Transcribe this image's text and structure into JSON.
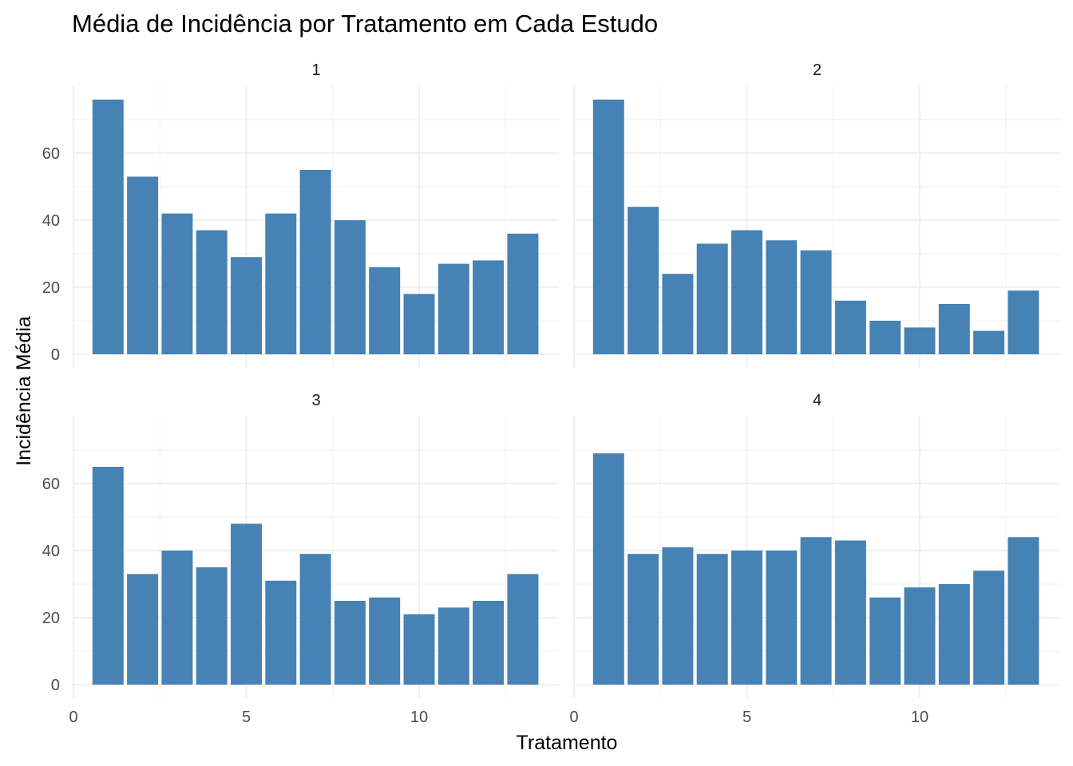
{
  "chart_data": {
    "type": "bar",
    "title": "Média de Incidência por Tratamento em Cada Estudo",
    "xlabel": "Tratamento",
    "ylabel": "Incidência Média",
    "bar_color": "#4682B4",
    "x_ticks": [
      0,
      5,
      10
    ],
    "x_tick_labels": [
      "0",
      "5",
      "10"
    ],
    "y_ticks": [
      0,
      20,
      40,
      60
    ],
    "y_tick_labels": [
      "0",
      "20",
      "40",
      "60"
    ],
    "xlim": [
      0,
      13.5
    ],
    "ylim": [
      0,
      78
    ],
    "categories": [
      1,
      2,
      3,
      4,
      5,
      6,
      7,
      8,
      9,
      10,
      11,
      12,
      13
    ],
    "panels": [
      {
        "name": "1",
        "values": [
          76,
          53,
          42,
          37,
          29,
          42,
          55,
          40,
          26,
          18,
          27,
          28,
          36
        ]
      },
      {
        "name": "2",
        "values": [
          76,
          44,
          24,
          33,
          37,
          34,
          31,
          16,
          10,
          8,
          15,
          7,
          19
        ]
      },
      {
        "name": "3",
        "values": [
          65,
          33,
          40,
          35,
          48,
          31,
          39,
          25,
          26,
          21,
          23,
          25,
          33
        ]
      },
      {
        "name": "4",
        "values": [
          69,
          39,
          41,
          39,
          40,
          40,
          44,
          43,
          26,
          29,
          30,
          34,
          44
        ]
      }
    ]
  }
}
